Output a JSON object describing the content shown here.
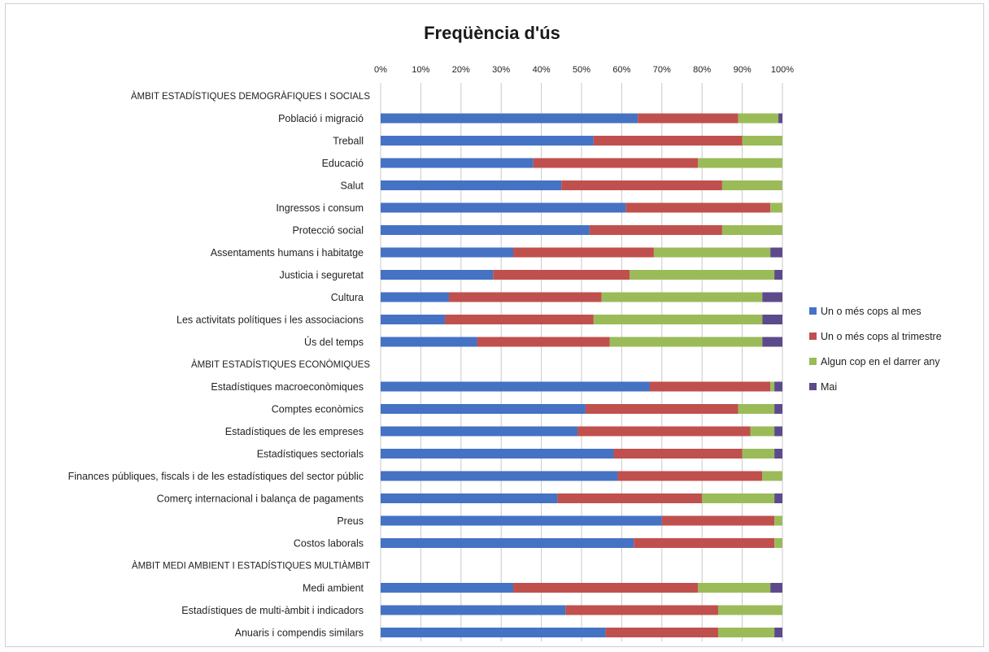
{
  "chart_data": {
    "type": "bar",
    "orientation": "horizontal",
    "stacked": "percent",
    "title": "Freqüència d'ús",
    "xlim": [
      0,
      100
    ],
    "x_ticks": [
      "0%",
      "10%",
      "20%",
      "30%",
      "40%",
      "50%",
      "60%",
      "70%",
      "80%",
      "90%",
      "100%"
    ],
    "grid": true,
    "legend_position": "right",
    "rows": [
      {
        "kind": "section",
        "label": "ÀMBIT ESTADÍSTIQUES DEMOGRÀFIQUES I SOCIALS"
      },
      {
        "kind": "bar",
        "label": "Població i migració",
        "values": [
          64,
          25,
          10,
          1
        ]
      },
      {
        "kind": "bar",
        "label": "Treball",
        "values": [
          53,
          37,
          10,
          0
        ]
      },
      {
        "kind": "bar",
        "label": "Educació",
        "values": [
          38,
          41,
          21,
          0
        ]
      },
      {
        "kind": "bar",
        "label": "Salut",
        "values": [
          45,
          40,
          15,
          0
        ]
      },
      {
        "kind": "bar",
        "label": "Ingressos i consum",
        "values": [
          61,
          36,
          3,
          0
        ]
      },
      {
        "kind": "bar",
        "label": "Protecció social",
        "values": [
          52,
          33,
          15,
          0
        ]
      },
      {
        "kind": "bar",
        "label": "Assentaments humans i habitatge",
        "values": [
          33,
          35,
          29,
          3
        ]
      },
      {
        "kind": "bar",
        "label": "Justicia i seguretat",
        "values": [
          28,
          34,
          36,
          2
        ]
      },
      {
        "kind": "bar",
        "label": "Cultura",
        "values": [
          17,
          38,
          40,
          5
        ]
      },
      {
        "kind": "bar",
        "label": "Les activitats polítiques i les associacions",
        "values": [
          16,
          37,
          42,
          5
        ]
      },
      {
        "kind": "bar",
        "label": "Ús del temps",
        "values": [
          24,
          33,
          38,
          5
        ]
      },
      {
        "kind": "section",
        "label": "ÀMBIT ESTADÍSTIQUES ECONÒMIQUES"
      },
      {
        "kind": "bar",
        "label": "Estadístiques macroeconòmiques",
        "values": [
          67,
          30,
          1,
          2
        ]
      },
      {
        "kind": "bar",
        "label": "Comptes econòmics",
        "values": [
          51,
          38,
          9,
          2
        ]
      },
      {
        "kind": "bar",
        "label": "Estadístiques de les empreses",
        "values": [
          49,
          43,
          6,
          2
        ]
      },
      {
        "kind": "bar",
        "label": "Estadístiques sectorials",
        "values": [
          58,
          32,
          8,
          2
        ]
      },
      {
        "kind": "bar",
        "label": "Finances públiques, fiscals i de les estadístiques del sector públic",
        "values": [
          59,
          36,
          5,
          0
        ]
      },
      {
        "kind": "bar",
        "label": "Comerç internacional i balança de pagaments",
        "values": [
          44,
          36,
          18,
          2
        ]
      },
      {
        "kind": "bar",
        "label": "Preus",
        "values": [
          70,
          28,
          2,
          0
        ]
      },
      {
        "kind": "bar",
        "label": "Costos laborals",
        "values": [
          63,
          35,
          2,
          0
        ]
      },
      {
        "kind": "section",
        "label": "ÀMBIT MEDI AMBIENT I ESTADÍSTIQUES MULTIÀMBIT"
      },
      {
        "kind": "bar",
        "label": "Medi ambient",
        "values": [
          33,
          46,
          18,
          3
        ]
      },
      {
        "kind": "bar",
        "label": "Estadístiques de multi-àmbit i indicadors",
        "values": [
          46,
          38,
          16,
          0
        ]
      },
      {
        "kind": "bar",
        "label": "Anuaris i compendis similars",
        "values": [
          56,
          28,
          14,
          2
        ]
      }
    ],
    "series": [
      {
        "name": "Un o més cops al mes",
        "color": "#4672c4"
      },
      {
        "name": "Un o més cops al trimestre",
        "color": "#c0504d"
      },
      {
        "name": "Algun cop en el darrer any",
        "color": "#9bbb59"
      },
      {
        "name": "Mai",
        "color": "#5c4b8c"
      }
    ]
  }
}
